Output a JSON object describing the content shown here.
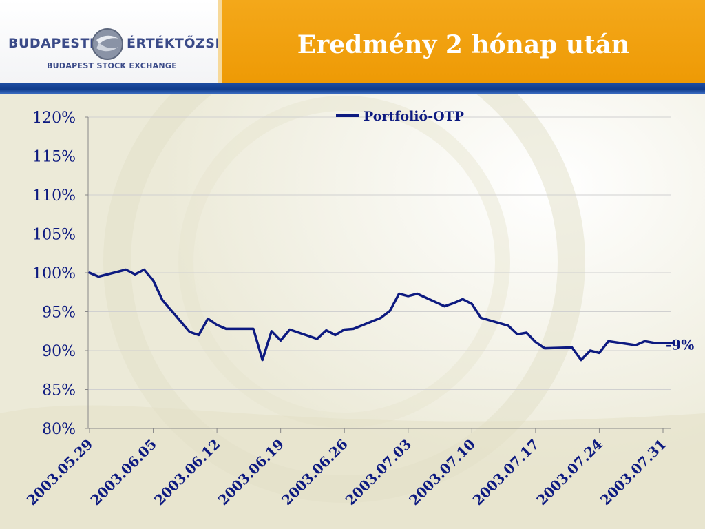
{
  "header": {
    "title": "Eredmény 2 hónap után",
    "logo_left": "BUDAPESTI",
    "logo_right": "ÉRTÉKTŐZSDE",
    "logo_sub": "BUDAPEST STOCK EXCHANGE"
  },
  "colors": {
    "accent": "#ee9a05",
    "bar": "#0f3c8c",
    "series": "#0d1a80",
    "text": "#0d1a80"
  },
  "chart_data": {
    "type": "line",
    "title": "",
    "xlabel": "",
    "ylabel": "",
    "ylim": [
      0.8,
      1.2
    ],
    "y_ticks": [
      "80%",
      "85%",
      "90%",
      "95%",
      "100%",
      "105%",
      "110%",
      "115%",
      "120%"
    ],
    "x_tick_labels": [
      "2003.05.29",
      "2003.06.05",
      "2003.06.12",
      "2003.06.19",
      "2003.06.26",
      "2003.07.03",
      "2003.07.10",
      "2003.07.17",
      "2003.07.24",
      "2003.07.31"
    ],
    "grid": true,
    "legend": "top-center",
    "end_annotation": "-9%",
    "series": [
      {
        "name": "Portfolió-OTP",
        "x": [
          "2003.05.29",
          "2003.05.30",
          "2003.06.02",
          "2003.06.03",
          "2003.06.04",
          "2003.06.05",
          "2003.06.06",
          "2003.06.09",
          "2003.06.10",
          "2003.06.11",
          "2003.06.12",
          "2003.06.13",
          "2003.06.16",
          "2003.06.17",
          "2003.06.18",
          "2003.06.19",
          "2003.06.20",
          "2003.06.23",
          "2003.06.24",
          "2003.06.25",
          "2003.06.26",
          "2003.06.27",
          "2003.06.30",
          "2003.07.01",
          "2003.07.02",
          "2003.07.03",
          "2003.07.04",
          "2003.07.07",
          "2003.07.08",
          "2003.07.09",
          "2003.07.10",
          "2003.07.11",
          "2003.07.14",
          "2003.07.15",
          "2003.07.16",
          "2003.07.17",
          "2003.07.18",
          "2003.07.21",
          "2003.07.22",
          "2003.07.23",
          "2003.07.24",
          "2003.07.25",
          "2003.07.28",
          "2003.07.29",
          "2003.07.30",
          "2003.07.31",
          "2003.08.01"
        ],
        "values": [
          1.0,
          0.995,
          1.004,
          0.998,
          1.004,
          0.99,
          0.965,
          0.924,
          0.92,
          0.941,
          0.933,
          0.928,
          0.928,
          0.888,
          0.925,
          0.913,
          0.927,
          0.915,
          0.926,
          0.92,
          0.927,
          0.928,
          0.942,
          0.951,
          0.973,
          0.97,
          0.973,
          0.957,
          0.961,
          0.966,
          0.96,
          0.942,
          0.932,
          0.921,
          0.923,
          0.911,
          0.903,
          0.904,
          0.888,
          0.9,
          0.897,
          0.912,
          0.907,
          0.912,
          0.91,
          0.91,
          0.91
        ]
      }
    ]
  }
}
